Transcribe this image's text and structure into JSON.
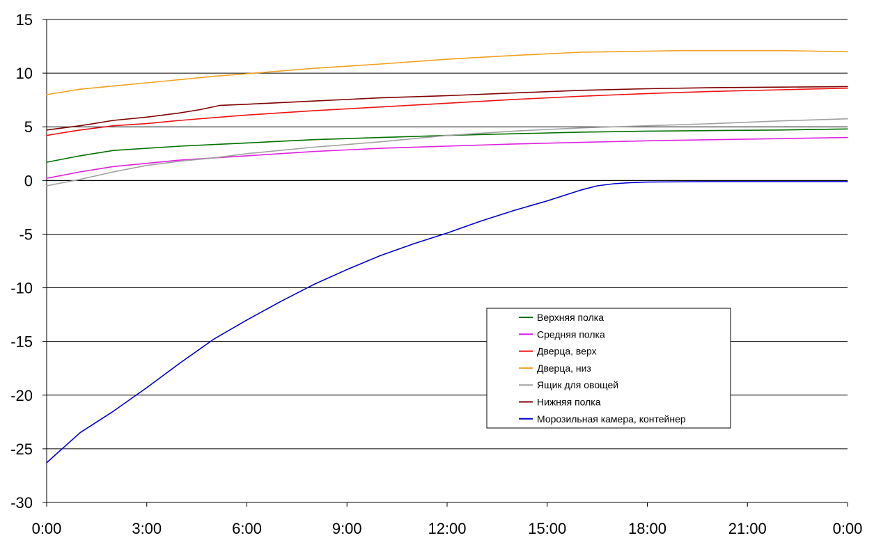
{
  "chart_data": {
    "type": "line",
    "title": "",
    "xlabel": "",
    "ylabel": "",
    "ylim": [
      -30,
      15
    ],
    "y_ticks": [
      "15",
      "10",
      "5",
      "0",
      "-5",
      "-10",
      "-15",
      "-20",
      "-25",
      "-30"
    ],
    "x_unit": "hours",
    "xlim": [
      0,
      24
    ],
    "x_ticks": [
      "0:00",
      "3:00",
      "6:00",
      "9:00",
      "12:00",
      "15:00",
      "18:00",
      "21:00",
      "0:00"
    ],
    "grid": "horizontal",
    "legend_position": "lower-right",
    "series": [
      {
        "name": "Верхняя полка",
        "color": "#007000",
        "x": [
          0,
          1,
          2,
          3,
          4,
          5,
          6,
          8,
          10,
          12,
          14,
          16,
          18,
          20,
          22,
          24
        ],
        "y": [
          1.7,
          2.3,
          2.8,
          3.0,
          3.2,
          3.35,
          3.5,
          3.8,
          4.0,
          4.2,
          4.35,
          4.5,
          4.6,
          4.65,
          4.7,
          4.8
        ]
      },
      {
        "name": "Средняя полка",
        "color": "#E020E0",
        "x": [
          0,
          1,
          2,
          3,
          4,
          5,
          6,
          8,
          10,
          12,
          14,
          16,
          18,
          20,
          22,
          24
        ],
        "y": [
          0.2,
          0.8,
          1.3,
          1.6,
          1.9,
          2.1,
          2.3,
          2.7,
          3.0,
          3.2,
          3.4,
          3.55,
          3.7,
          3.8,
          3.9,
          4.0
        ]
      },
      {
        "name": "Дверца, верх",
        "color": "#EE1111",
        "x": [
          0,
          1,
          2,
          3,
          4,
          5,
          6,
          8,
          10,
          12,
          14,
          16,
          18,
          20,
          22,
          24
        ],
        "y": [
          4.2,
          4.7,
          5.1,
          5.3,
          5.6,
          5.85,
          6.1,
          6.5,
          6.85,
          7.2,
          7.55,
          7.85,
          8.1,
          8.3,
          8.45,
          8.6
        ]
      },
      {
        "name": "Дверца, низ",
        "color": "#F0A020",
        "x": [
          0,
          1,
          2,
          3,
          4,
          5,
          6,
          8,
          10,
          12,
          14,
          16,
          17,
          18,
          19,
          20,
          22,
          23,
          24
        ],
        "y": [
          8.0,
          8.5,
          8.8,
          9.1,
          9.4,
          9.7,
          9.95,
          10.45,
          10.85,
          11.3,
          11.65,
          11.95,
          12.0,
          12.05,
          12.1,
          12.1,
          12.1,
          12.05,
          12.0
        ]
      },
      {
        "name": "Ящик для овощей",
        "color": "#A0A0A0",
        "x": [
          0,
          1,
          2,
          3,
          4,
          5,
          6,
          8,
          10,
          12,
          14,
          16,
          18,
          20,
          22,
          24
        ],
        "y": [
          -0.5,
          0.1,
          0.8,
          1.4,
          1.8,
          2.1,
          2.5,
          3.1,
          3.6,
          4.2,
          4.6,
          4.9,
          5.1,
          5.3,
          5.55,
          5.75
        ]
      },
      {
        "name": "Нижняя полка",
        "color": "#800000",
        "x": [
          0,
          1,
          2,
          3,
          4,
          4.6,
          5.2,
          6,
          8,
          10,
          12,
          14,
          16,
          18,
          20,
          22,
          24
        ],
        "y": [
          4.7,
          5.1,
          5.6,
          5.9,
          6.3,
          6.6,
          7.0,
          7.1,
          7.4,
          7.7,
          7.9,
          8.15,
          8.4,
          8.55,
          8.65,
          8.7,
          8.75
        ]
      },
      {
        "name": "Морозильная камера, контейнер",
        "color": "#0000CC",
        "x": [
          0,
          1,
          2,
          3,
          4,
          5,
          6,
          7,
          8,
          9,
          10,
          11,
          12,
          13,
          14,
          15,
          16,
          16.5,
          17,
          17.5,
          18,
          20,
          22,
          24
        ],
        "y": [
          -26.3,
          -23.5,
          -21.5,
          -19.3,
          -17.0,
          -14.8,
          -13.0,
          -11.3,
          -9.7,
          -8.3,
          -7.0,
          -5.9,
          -4.9,
          -3.8,
          -2.8,
          -1.9,
          -0.9,
          -0.5,
          -0.3,
          -0.2,
          -0.15,
          -0.1,
          -0.1,
          -0.1
        ]
      }
    ]
  }
}
